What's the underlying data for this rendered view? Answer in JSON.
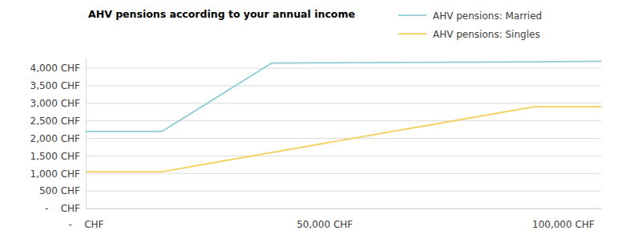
{
  "chart_data": {
    "type": "line",
    "title": "AHV pensions according to your annual income",
    "x": [
      0,
      16000,
      39000,
      94000,
      108000
    ],
    "series": [
      {
        "name": "AHV pensions: Married",
        "color": "#8ecdd5",
        "values": [
          2200,
          2200,
          4150,
          4180,
          4200
        ]
      },
      {
        "name": "AHV pensions: Singles",
        "color": "#f5cf5b",
        "values": [
          1050,
          1050,
          1600,
          2900,
          2900
        ]
      }
    ],
    "xlim": [
      0,
      108000
    ],
    "xticks": [
      {
        "value": 0,
        "label": "-    CHF"
      },
      {
        "value": 50000,
        "label": "50,000 CHF"
      },
      {
        "value": 100000,
        "label": "100,000 CHF"
      }
    ],
    "ylim": [
      0,
      4300
    ],
    "yticks": [
      {
        "value": 0,
        "label": "-    CHF"
      },
      {
        "value": 500,
        "label": "500 CHF"
      },
      {
        "value": 1000,
        "label": "1,000 CHF"
      },
      {
        "value": 1500,
        "label": "1,500 CHF"
      },
      {
        "value": 2000,
        "label": "2,000 CHF"
      },
      {
        "value": 2500,
        "label": "2,500 CHF"
      },
      {
        "value": 3000,
        "label": "3,000 CHF"
      },
      {
        "value": 3500,
        "label": "3,500 CHF"
      },
      {
        "value": 4000,
        "label": "4,000 CHF"
      }
    ],
    "grid": true,
    "legend": "top-right"
  }
}
